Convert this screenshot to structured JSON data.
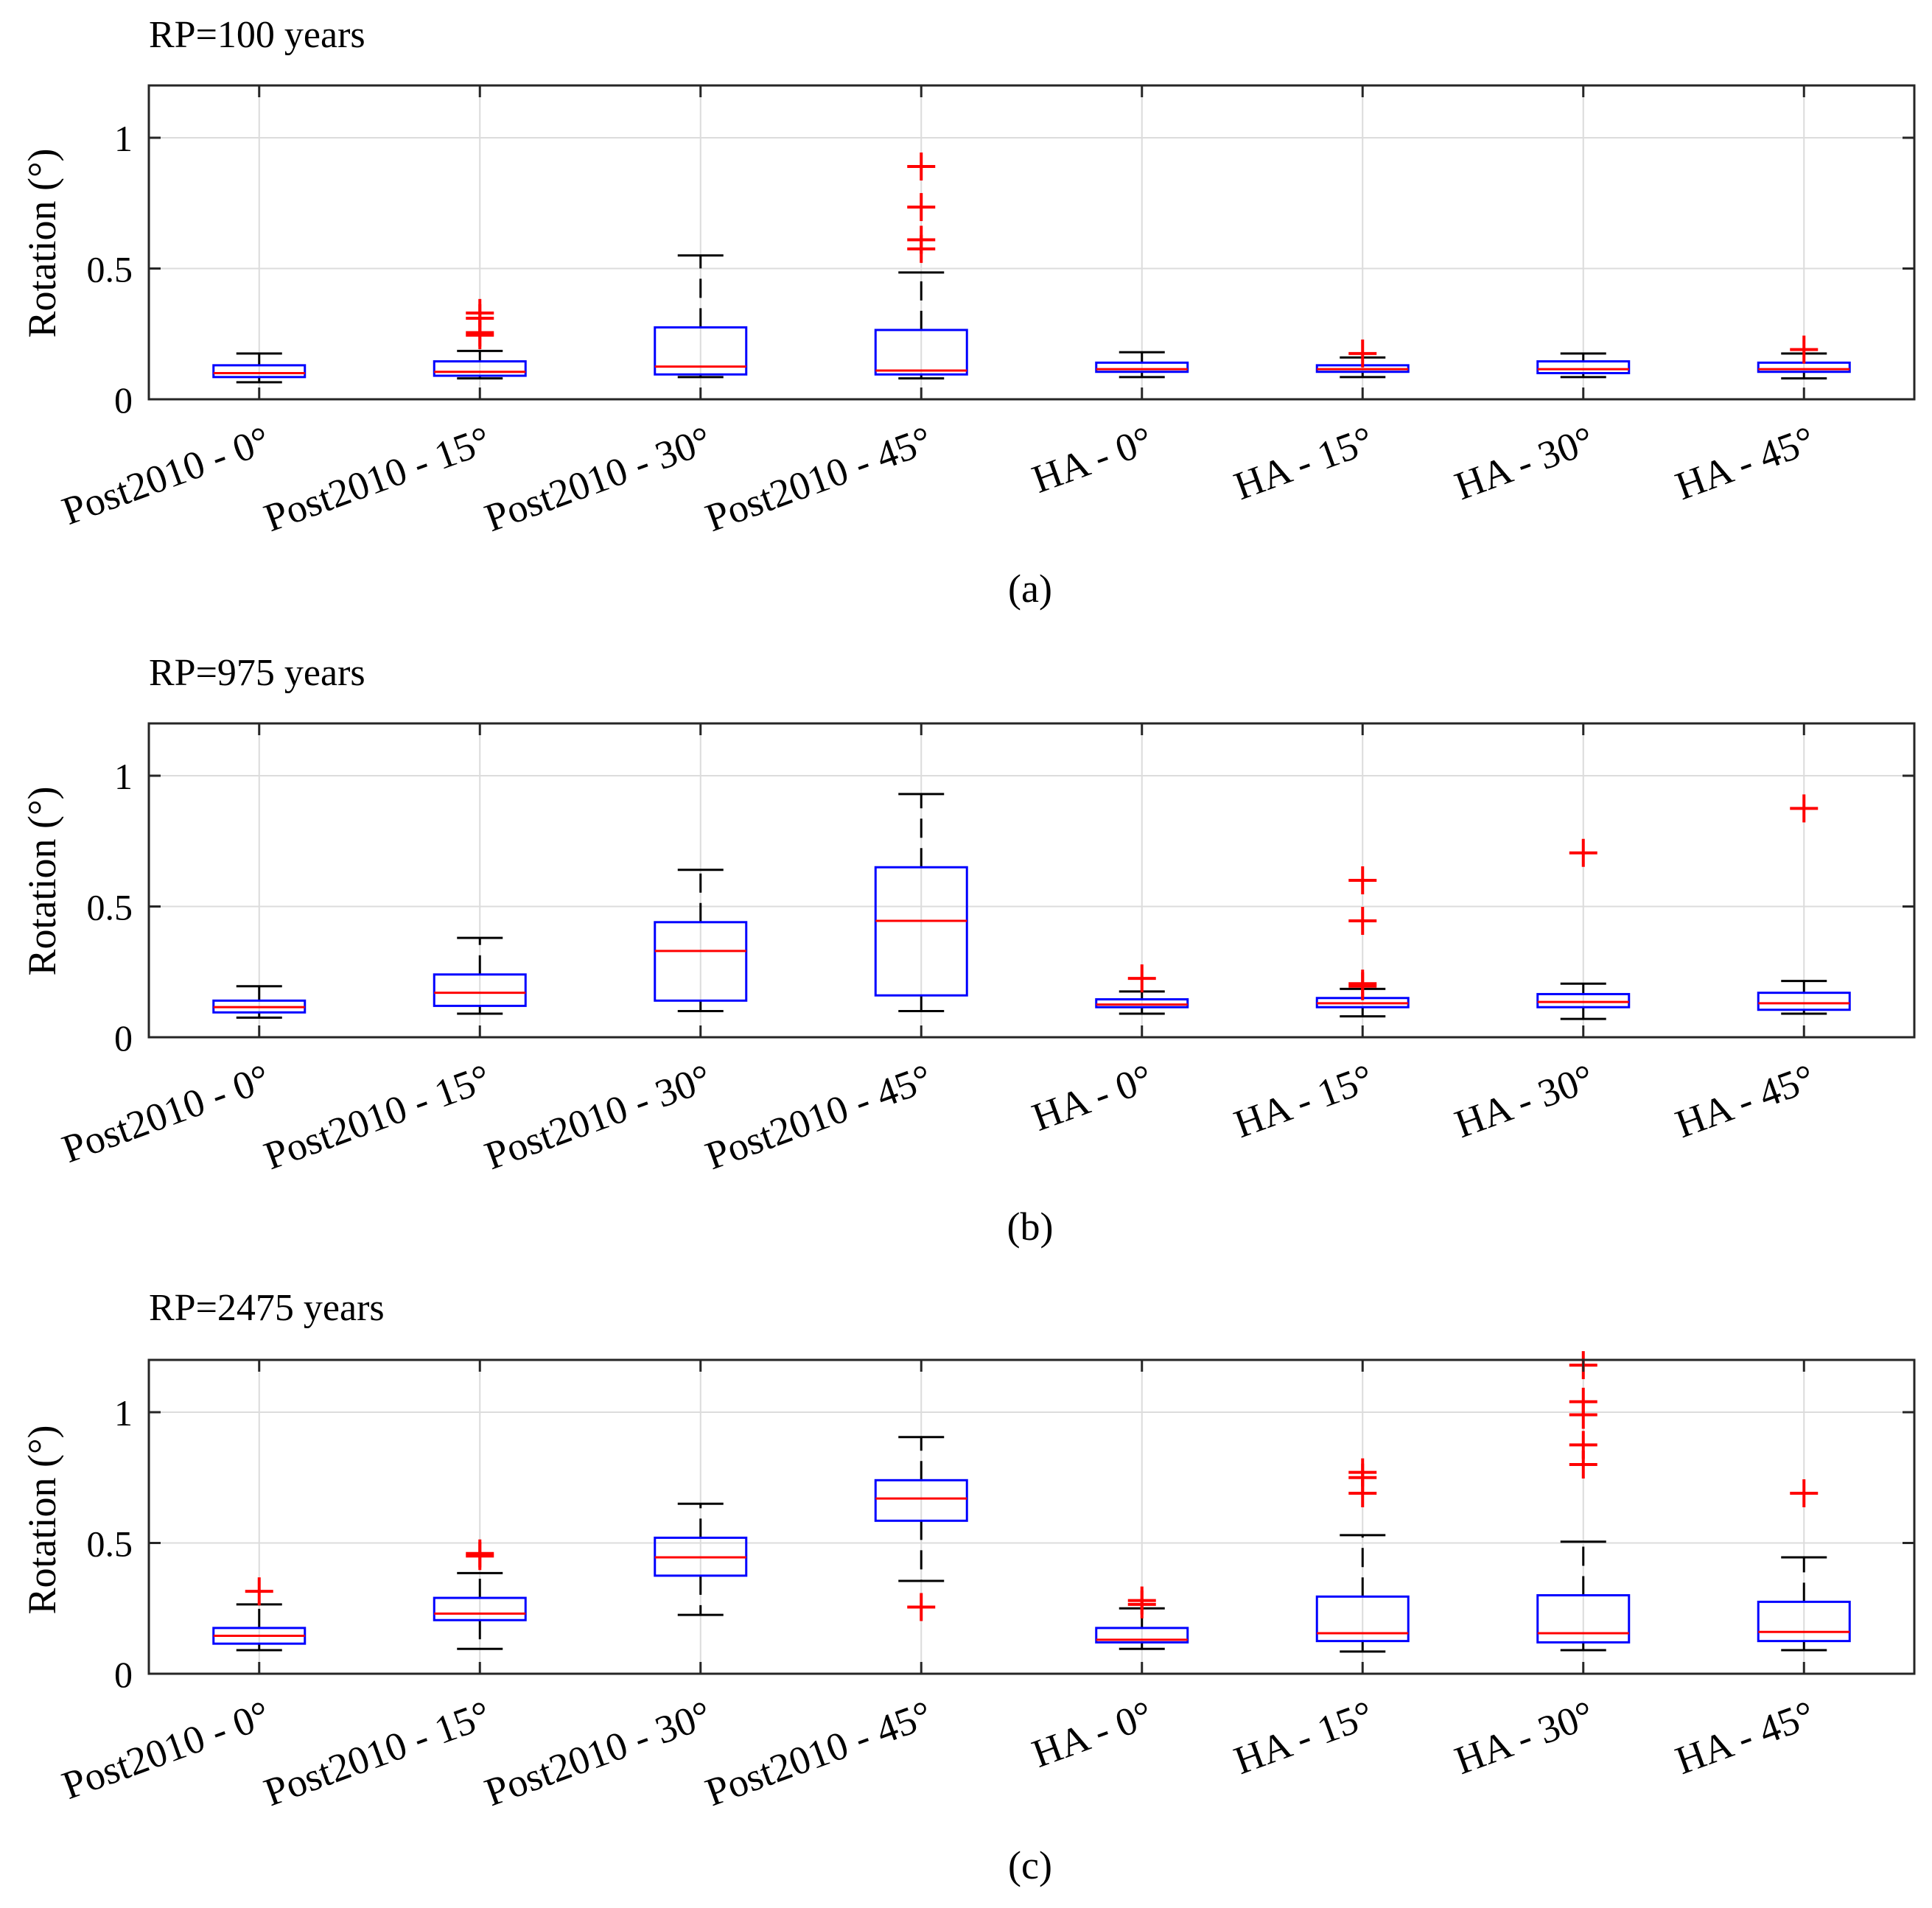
{
  "figure": {
    "panel_tags": [
      "(a)",
      "(b)",
      "(c)"
    ]
  },
  "colors": {
    "box": "#0000ff",
    "median": "#ff0000",
    "whisker": "#000000",
    "outlier": "#ff0000",
    "grid": "#dcdcdc",
    "axis": "#262626"
  },
  "chart_data": [
    {
      "type": "boxplot",
      "title": "RP=100 years",
      "panel_label": "(a)",
      "ylabel": "Rotation (°)",
      "ylim": [
        0,
        1.2
      ],
      "yticks": [
        0,
        0.5,
        1
      ],
      "ytick_labels": [
        "0",
        "0.5",
        "1"
      ],
      "grid": true,
      "categories": [
        "Post2010 - 0°",
        "Post2010 - 15°",
        "Post2010 - 30°",
        "Post2010 - 45°",
        "HA - 0°",
        "HA - 15°",
        "HA - 30°",
        "HA - 45°"
      ],
      "boxes": [
        {
          "whisker_low": 0.065,
          "q1": 0.085,
          "median": 0.1,
          "q3": 0.13,
          "whisker_high": 0.175,
          "outliers": []
        },
        {
          "whisker_low": 0.08,
          "q1": 0.09,
          "median": 0.105,
          "q3": 0.145,
          "whisker_high": 0.185,
          "outliers": [
            0.245,
            0.255,
            0.31,
            0.33
          ]
        },
        {
          "whisker_low": 0.085,
          "q1": 0.095,
          "median": 0.125,
          "q3": 0.275,
          "whisker_high": 0.55,
          "outliers": []
        },
        {
          "whisker_low": 0.08,
          "q1": 0.095,
          "median": 0.11,
          "q3": 0.265,
          "whisker_high": 0.485,
          "outliers": [
            0.575,
            0.61,
            0.735,
            0.89
          ]
        },
        {
          "whisker_low": 0.085,
          "q1": 0.105,
          "median": 0.115,
          "q3": 0.14,
          "whisker_high": 0.18,
          "outliers": []
        },
        {
          "whisker_low": 0.085,
          "q1": 0.105,
          "median": 0.115,
          "q3": 0.13,
          "whisker_high": 0.16,
          "outliers": [
            0.175
          ]
        },
        {
          "whisker_low": 0.085,
          "q1": 0.1,
          "median": 0.115,
          "q3": 0.145,
          "whisker_high": 0.175,
          "outliers": []
        },
        {
          "whisker_low": 0.08,
          "q1": 0.105,
          "median": 0.115,
          "q3": 0.14,
          "whisker_high": 0.175,
          "outliers": [
            0.19
          ]
        }
      ]
    },
    {
      "type": "boxplot",
      "title": "RP=975 years",
      "panel_label": "(b)",
      "ylabel": "Rotation (°)",
      "ylim": [
        0,
        1.2
      ],
      "yticks": [
        0,
        0.5,
        1
      ],
      "ytick_labels": [
        "0",
        "0.5",
        "1"
      ],
      "grid": true,
      "categories": [
        "Post2010 - 0°",
        "Post2010 - 15°",
        "Post2010 - 30°",
        "Post2010 - 45°",
        "HA - 0°",
        "HA - 15°",
        "HA - 30°",
        "HA - 45°"
      ],
      "boxes": [
        {
          "whisker_low": 0.075,
          "q1": 0.095,
          "median": 0.115,
          "q3": 0.14,
          "whisker_high": 0.195,
          "outliers": []
        },
        {
          "whisker_low": 0.09,
          "q1": 0.12,
          "median": 0.17,
          "q3": 0.24,
          "whisker_high": 0.38,
          "outliers": []
        },
        {
          "whisker_low": 0.1,
          "q1": 0.14,
          "median": 0.33,
          "q3": 0.44,
          "whisker_high": 0.64,
          "outliers": []
        },
        {
          "whisker_low": 0.1,
          "q1": 0.16,
          "median": 0.445,
          "q3": 0.65,
          "whisker_high": 0.93,
          "outliers": []
        },
        {
          "whisker_low": 0.09,
          "q1": 0.115,
          "median": 0.125,
          "q3": 0.145,
          "whisker_high": 0.175,
          "outliers": [
            0.225
          ]
        },
        {
          "whisker_low": 0.08,
          "q1": 0.115,
          "median": 0.13,
          "q3": 0.15,
          "whisker_high": 0.185,
          "outliers": [
            0.195,
            0.205,
            0.445,
            0.6
          ]
        },
        {
          "whisker_low": 0.07,
          "q1": 0.115,
          "median": 0.135,
          "q3": 0.165,
          "whisker_high": 0.205,
          "outliers": [
            0.705
          ]
        },
        {
          "whisker_low": 0.09,
          "q1": 0.105,
          "median": 0.13,
          "q3": 0.17,
          "whisker_high": 0.215,
          "outliers": [
            0.875
          ]
        }
      ]
    },
    {
      "type": "boxplot",
      "title": "RP=2475 years",
      "panel_label": "(c)",
      "ylabel": "Rotation (°)",
      "ylim": [
        0,
        1.2
      ],
      "yticks": [
        0,
        0.5,
        1
      ],
      "ytick_labels": [
        "0",
        "0.5",
        "1"
      ],
      "grid": true,
      "categories": [
        "Post2010 - 0°",
        "Post2010 - 15°",
        "Post2010 - 30°",
        "Post2010 - 45°",
        "HA - 0°",
        "HA - 15°",
        "HA - 30°",
        "HA - 45°"
      ],
      "boxes": [
        {
          "whisker_low": 0.09,
          "q1": 0.115,
          "median": 0.145,
          "q3": 0.175,
          "whisker_high": 0.265,
          "outliers": [
            0.315
          ]
        },
        {
          "whisker_low": 0.095,
          "q1": 0.205,
          "median": 0.23,
          "q3": 0.29,
          "whisker_high": 0.385,
          "outliers": [
            0.45,
            0.46
          ]
        },
        {
          "whisker_low": 0.225,
          "q1": 0.375,
          "median": 0.445,
          "q3": 0.52,
          "whisker_high": 0.65,
          "outliers": []
        },
        {
          "whisker_low": 0.355,
          "q1": 0.585,
          "median": 0.67,
          "q3": 0.74,
          "whisker_high": 0.905,
          "outliers": [
            0.255
          ]
        },
        {
          "whisker_low": 0.095,
          "q1": 0.12,
          "median": 0.13,
          "q3": 0.175,
          "whisker_high": 0.25,
          "outliers": [
            0.265,
            0.28
          ]
        },
        {
          "whisker_low": 0.085,
          "q1": 0.125,
          "median": 0.155,
          "q3": 0.295,
          "whisker_high": 0.53,
          "outliers": [
            0.69,
            0.75,
            0.77
          ]
        },
        {
          "whisker_low": 0.09,
          "q1": 0.12,
          "median": 0.155,
          "q3": 0.3,
          "whisker_high": 0.505,
          "outliers": [
            0.8,
            0.875,
            0.99,
            1.04,
            1.18
          ]
        },
        {
          "whisker_low": 0.09,
          "q1": 0.125,
          "median": 0.16,
          "q3": 0.275,
          "whisker_high": 0.445,
          "outliers": [
            0.69
          ]
        }
      ]
    }
  ]
}
